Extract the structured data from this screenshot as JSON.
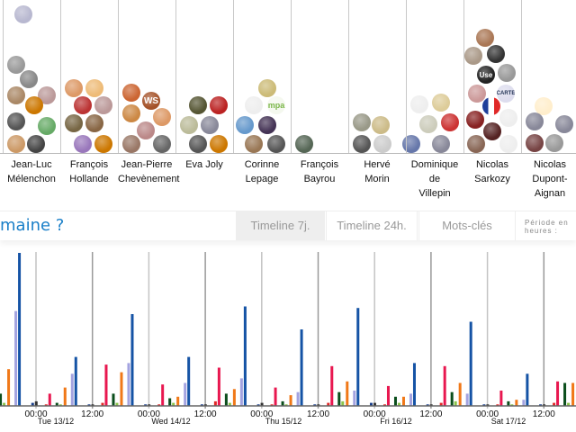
{
  "candidates": [
    {
      "first": "Jean-Luc",
      "last": "Mélenchon"
    },
    {
      "first": "François",
      "last": "Hollande"
    },
    {
      "first": "Jean-Pierre",
      "last": "Chevènement"
    },
    {
      "first": "Eva Joly",
      "last": ""
    },
    {
      "first": "Corinne",
      "last": "Lepage"
    },
    {
      "first": "François",
      "last": "Bayrou"
    },
    {
      "first": "Hervé",
      "last": "Morin"
    },
    {
      "first": "Dominique",
      "last": "de",
      "extra": "Villepin"
    },
    {
      "first": "Nicolas",
      "last": "Sarkozy"
    },
    {
      "first": "Nicolas",
      "last": "Dupont-",
      "extra": "Aignan"
    }
  ],
  "avatar_texts": {
    "ws": "WS",
    "mpa": "mpa",
    "carte": "CARTE",
    "use": "Use"
  },
  "toolbar": {
    "title": "maine ?",
    "tabs": [
      {
        "label": "Timeline 7j.",
        "active": true
      },
      {
        "label": "Timeline 24h.",
        "active": false
      },
      {
        "label": "Mots-clés",
        "active": false
      }
    ],
    "period_label": "Période en heures :"
  },
  "chart_data": {
    "type": "bar",
    "x_tick_labels": [
      "00:00",
      "12:00",
      "00:00",
      "12:00",
      "00:00",
      "12:00",
      "00:00",
      "12:00",
      "00:00",
      "12:00"
    ],
    "date_labels": [
      "Tue 13/12",
      "Wed 14/12",
      "Thu 15/12",
      "Fri 16/12",
      "Sat 17/12"
    ],
    "grid": "vertical lines every 12h",
    "ylim": [
      0,
      100
    ],
    "series_colors": [
      "#1a3f8a",
      "#333333",
      "#e02828",
      "#e8174f",
      "#0b4e1c",
      "#8bc34a",
      "#f07818",
      "#a3a3e0",
      "#1553a5"
    ],
    "clusters": [
      {
        "time": "Mon 12/12 11:00",
        "values": [
          1,
          1,
          0,
          0,
          8,
          2,
          24,
          62,
          100
        ]
      },
      {
        "time": "Mon 12/12 23:00",
        "values": [
          2,
          3,
          1,
          8,
          2,
          1,
          12,
          21,
          32
        ]
      },
      {
        "time": "Tue 13/12 11:00",
        "values": [
          1,
          1,
          2,
          27,
          8,
          2,
          22,
          28,
          60
        ]
      },
      {
        "time": "Tue 13/12 23:00",
        "values": [
          1,
          1,
          1,
          14,
          5,
          2,
          6,
          15,
          32
        ]
      },
      {
        "time": "Wed 14/12 11:00",
        "values": [
          1,
          1,
          3,
          25,
          8,
          2,
          11,
          18,
          65
        ]
      },
      {
        "time": "Wed 14/12 23:00",
        "values": [
          1,
          2,
          1,
          12,
          3,
          1,
          7,
          9,
          50
        ]
      },
      {
        "time": "Thu 15/12 11:00",
        "values": [
          1,
          1,
          2,
          26,
          9,
          3,
          16,
          10,
          64
        ]
      },
      {
        "time": "Thu 15/12 23:00",
        "values": [
          2,
          2,
          1,
          13,
          6,
          2,
          6,
          8,
          28
        ]
      },
      {
        "time": "Fri 16/12 11:00",
        "values": [
          1,
          1,
          2,
          26,
          9,
          3,
          15,
          8,
          55
        ]
      },
      {
        "time": "Fri 16/12 23:00",
        "values": [
          1,
          1,
          1,
          10,
          3,
          1,
          4,
          4,
          21
        ]
      },
      {
        "time": "Sat 17/12 11:00",
        "values": [
          1,
          1,
          2,
          16,
          15,
          2,
          15,
          0,
          0
        ]
      }
    ]
  }
}
